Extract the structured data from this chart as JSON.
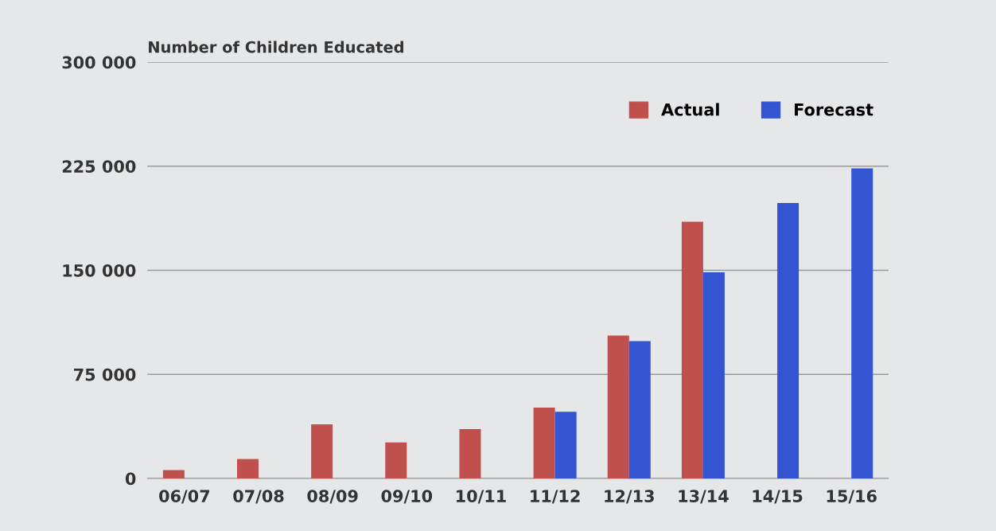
{
  "chart_data": {
    "type": "bar",
    "title": "Number of Children Educated",
    "categories": [
      "06/07",
      "07/08",
      "08/09",
      "09/10",
      "10/11",
      "11/12",
      "12/13",
      "13/14",
      "14/15",
      "15/16"
    ],
    "series": [
      {
        "name": "Actual",
        "color": "#c0504d",
        "values": [
          6000,
          14000,
          39000,
          26000,
          35500,
          51000,
          103000,
          185000,
          null,
          null
        ]
      },
      {
        "name": "Forecast",
        "color": "#3355d1",
        "values": [
          null,
          null,
          null,
          null,
          null,
          48000,
          99000,
          148500,
          198500,
          223500
        ]
      }
    ],
    "ylim": [
      0,
      300000
    ],
    "yticks": [
      {
        "value": 0,
        "label": "0"
      },
      {
        "value": 75000,
        "label": "75 000"
      },
      {
        "value": 150000,
        "label": "150 000"
      },
      {
        "value": 225000,
        "label": "225 000"
      },
      {
        "value": 300000,
        "label": "300 000"
      }
    ],
    "grid": "y",
    "legend": "top right"
  }
}
